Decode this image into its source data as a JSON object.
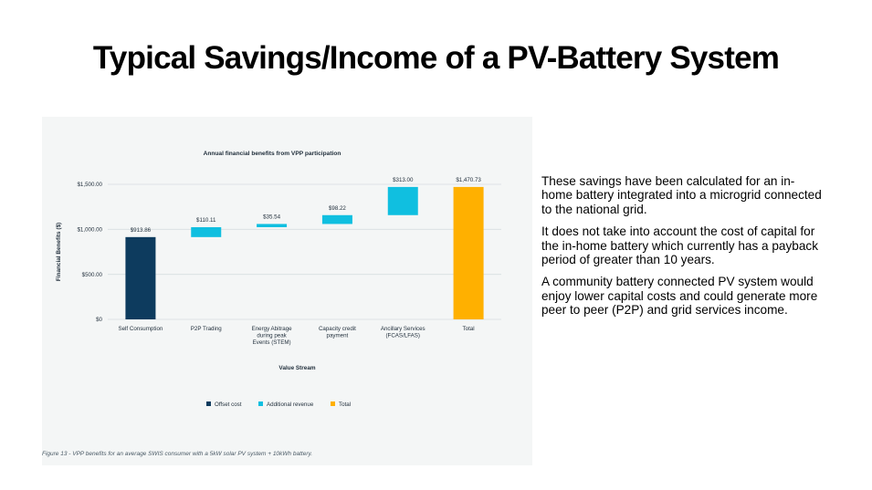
{
  "slide": {
    "title": "Typical Savings/Income of a PV-Battery System",
    "notes": [
      "These savings have been calculated for an in-home battery integrated into a microgrid connected to the national grid.",
      "It does not take into account the cost of capital for the in-home battery which currently has a payback period of greater than 10 years.",
      "A community battery connected PV system would enjoy lower capital costs and could generate more peer to peer (P2P) and grid services income."
    ]
  },
  "figure": {
    "caption": "Figure 13 - VPP benefits for an average SWIS consumer with a 5kW solar PV system + 10kWh battery."
  },
  "colors": {
    "offset_cost": "#0d3b5e",
    "additional_revenue": "#10bfe0",
    "total": "#ffb000",
    "grid": "#d7dde0",
    "text": "#1f2d3a"
  },
  "chart_data": {
    "type": "bar",
    "subtype": "waterfall",
    "title": "Annual financial benefits from VPP participation",
    "xlabel": "Value Stream",
    "ylabel": "Financial Benefits ($)",
    "ylim": [
      0,
      1500
    ],
    "yticks": [
      0,
      500,
      1000,
      1500
    ],
    "ytick_labels": [
      "$0",
      "$500.00",
      "$1,000.00",
      "$1,500.00"
    ],
    "grid": true,
    "legend_position": "bottom",
    "categories": [
      [
        "Self Consumption"
      ],
      [
        "P2P Trading"
      ],
      [
        "Energy Abitrage",
        "during peak",
        "Events (STEM)"
      ],
      [
        "Capacity credit",
        "payment"
      ],
      [
        "Ancillary Services",
        "(FCAS/LFAS)"
      ],
      [
        "Total"
      ]
    ],
    "values": [
      913.86,
      110.11,
      35.54,
      98.22,
      313.0,
      1470.73
    ],
    "data_labels": [
      "$913.86",
      "$110.11",
      "$35.54",
      "$98.22",
      "$313.00",
      "$1,470.73"
    ],
    "kinds": [
      "offset",
      "revenue",
      "revenue",
      "revenue",
      "revenue",
      "total"
    ],
    "legend": [
      {
        "key": "offset",
        "label": "Offset cost"
      },
      {
        "key": "revenue",
        "label": "Additional revenue"
      },
      {
        "key": "total",
        "label": "Total"
      }
    ]
  }
}
